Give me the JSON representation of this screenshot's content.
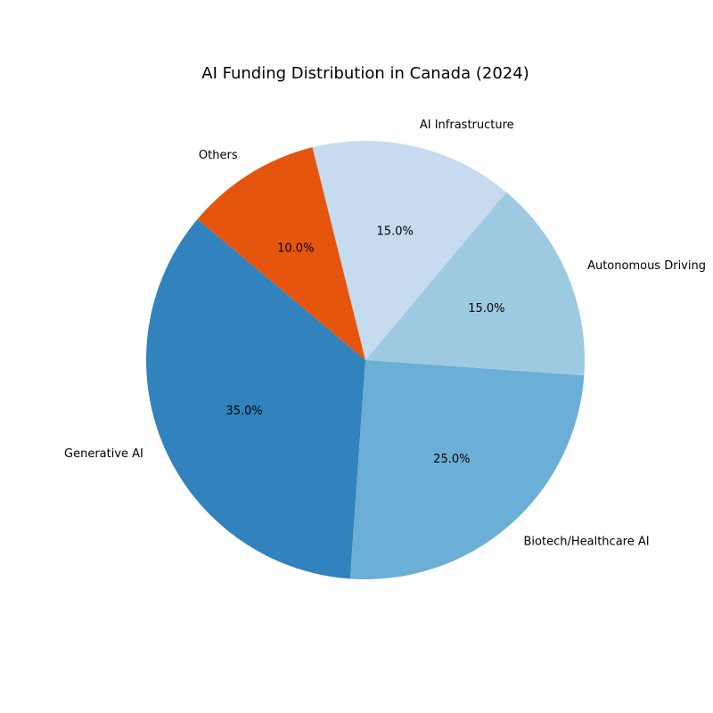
{
  "chart_data": {
    "type": "pie",
    "title": "AI Funding Distribution in Canada (2024)",
    "start_angle_deg": 140,
    "direction": "counterclockwise",
    "slices": [
      {
        "label": "Generative AI",
        "value": 35.0,
        "pct_label": "35.0%",
        "color": "#3182bd"
      },
      {
        "label": "Biotech/Healthcare AI",
        "value": 25.0,
        "pct_label": "25.0%",
        "color": "#6baed6"
      },
      {
        "label": "Autonomous Driving",
        "value": 15.0,
        "pct_label": "15.0%",
        "color": "#9ecae1"
      },
      {
        "label": "AI Infrastructure",
        "value": 15.0,
        "pct_label": "15.0%",
        "color": "#c6dbef"
      },
      {
        "label": "Others",
        "value": 10.0,
        "pct_label": "10.0%",
        "color": "#e6550d"
      }
    ]
  }
}
